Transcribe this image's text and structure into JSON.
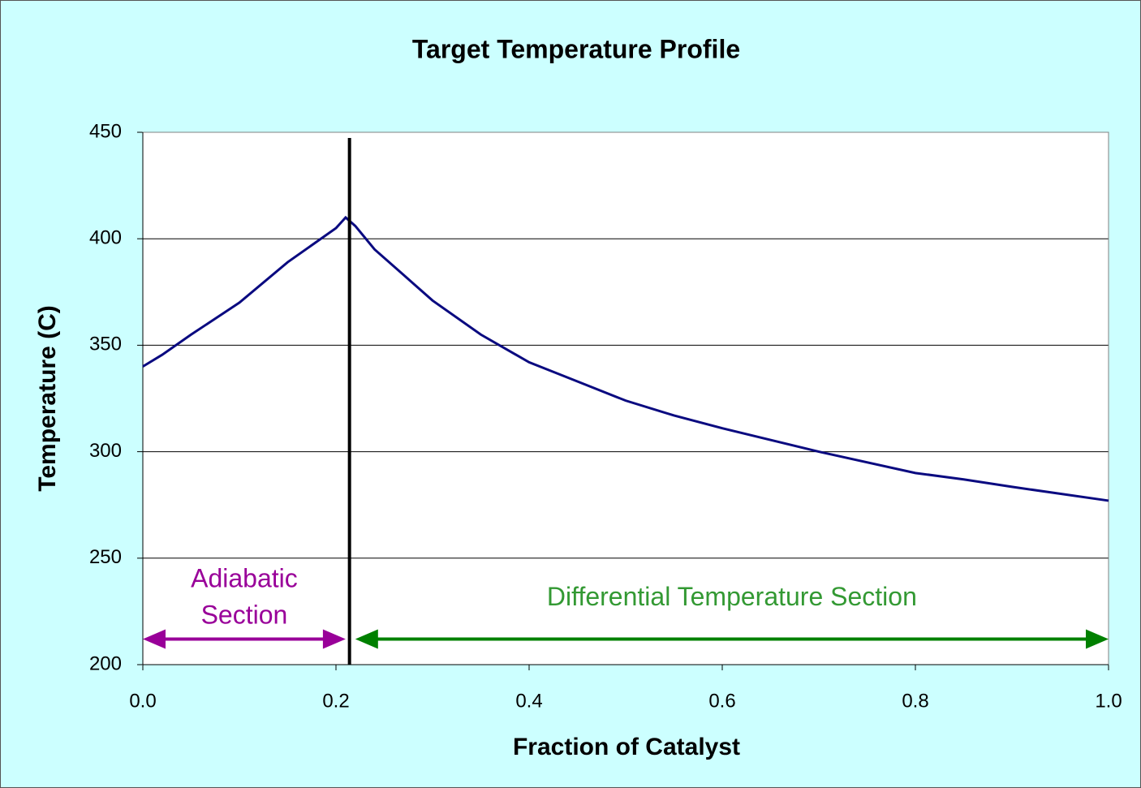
{
  "chart_data": {
    "type": "line",
    "title": "Target Temperature Profile",
    "xlabel": "Fraction of Catalyst",
    "ylabel": "Temperature (C)",
    "series": [
      {
        "name": "Target Temperature",
        "color": "#0a0a80",
        "x": [
          0,
          0.02,
          0.05,
          0.1,
          0.15,
          0.2,
          0.21,
          0.22,
          0.24,
          0.27,
          0.3,
          0.35,
          0.4,
          0.45,
          0.5,
          0.55,
          0.6,
          0.7,
          0.8,
          0.85,
          0.9,
          1.0
        ],
        "values": [
          340,
          345.5,
          355,
          370,
          389,
          405,
          410,
          406,
          395,
          383,
          371,
          355,
          342,
          333,
          324,
          317,
          311,
          300,
          290,
          287,
          283.5,
          277
        ]
      }
    ],
    "xlim": [
      0,
      1
    ],
    "xticks": [
      {
        "value": 0,
        "label": "0.0"
      },
      0.2,
      0.4,
      0.6,
      0.8,
      {
        "value": 1,
        "label": "1.0"
      }
    ],
    "ylim": [
      200,
      450
    ],
    "yticks": [
      200,
      250,
      300,
      350,
      400,
      450
    ],
    "grid": true,
    "vline_x": 0.214,
    "annotations": [
      {
        "lines": [
          "Adiabatic",
          "Section"
        ],
        "color": "#990099",
        "x": [
          0,
          0.21
        ],
        "y": 212
      },
      {
        "lines": [
          "Differential Temperature Section"
        ],
        "color": "#339933",
        "arrow_color": "#008000",
        "x": [
          0.22,
          1.0
        ],
        "y": 212
      }
    ]
  }
}
